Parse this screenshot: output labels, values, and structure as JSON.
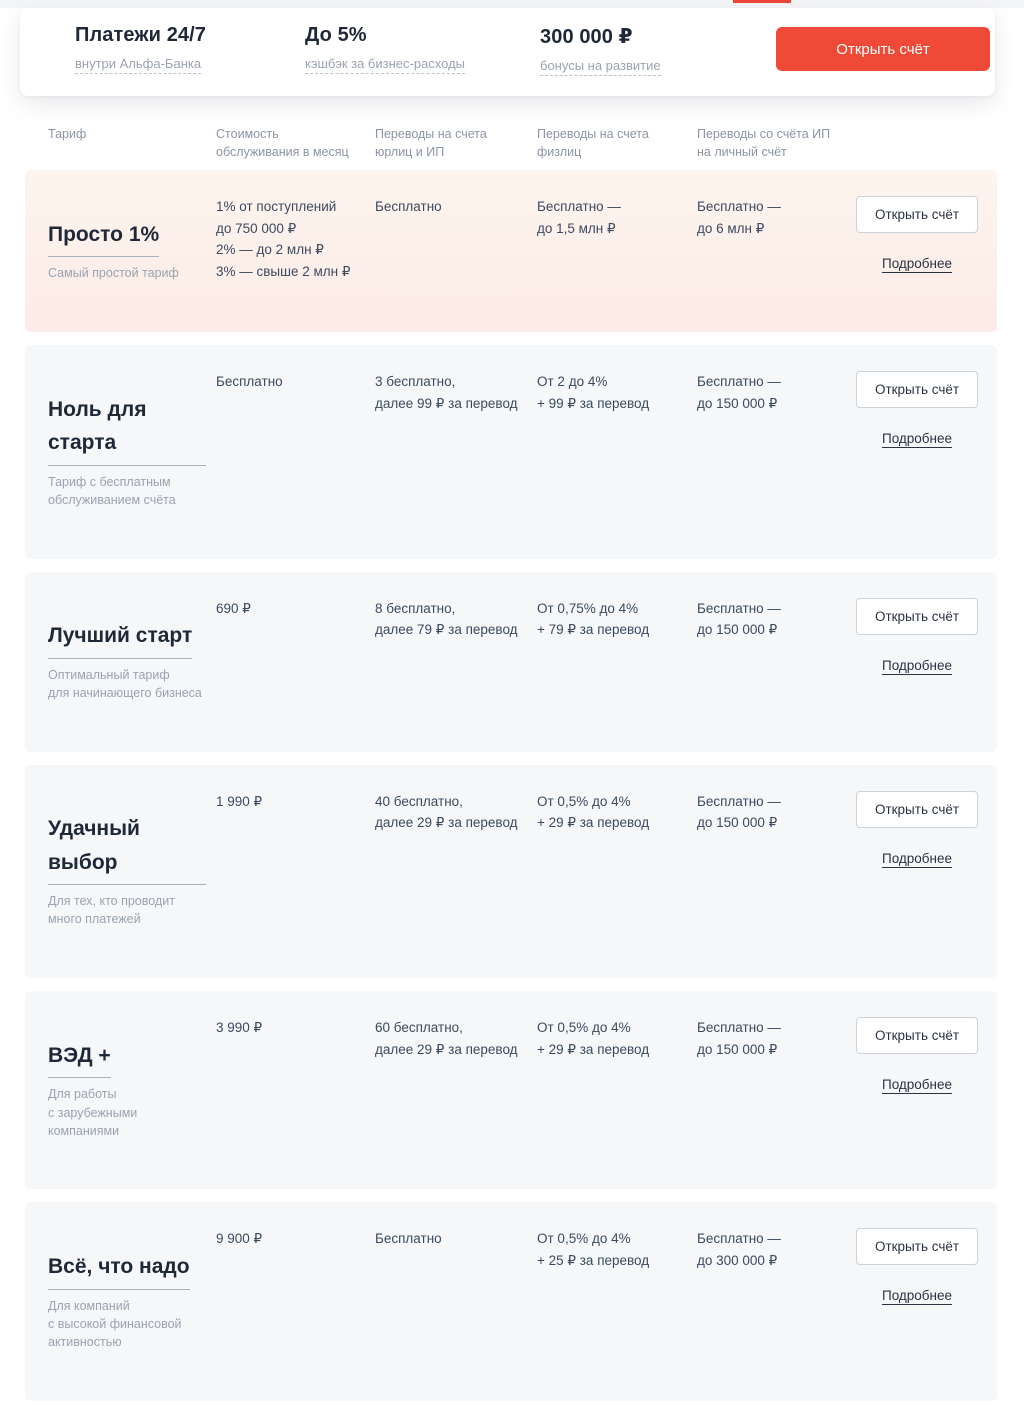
{
  "hero": {
    "stats": [
      {
        "title": "Платежи 24/7",
        "subtitle": "внутри Альфа-Банка"
      },
      {
        "title": "До 5%",
        "subtitle": "кэшбэк за бизнес-расходы"
      },
      {
        "title": "300 000 ₽",
        "subtitle": "бонусы на развитие"
      }
    ],
    "cta_label": "Открыть счёт"
  },
  "table": {
    "headers": [
      "Тариф",
      "Стоимость\nобслуживания в месяц",
      "Переводы на счета\nюрлиц и ИП",
      "Переводы на счета\nфизлиц",
      "Переводы со счёта ИП\nна личный счёт"
    ],
    "open_account_label": "Открыть счёт",
    "details_label": "Подробнее",
    "rows": [
      {
        "name": "Просто 1%",
        "description": "Самый простой тариф",
        "monthly_cost": "1% от поступлений\nдо 750 000 ₽\n2% — до 2 млн ₽\n3% — свыше 2 млн ₽",
        "transfers_business": "Бесплатно",
        "transfers_individuals": "Бесплатно —\nдо 1,5 млн ₽",
        "transfers_personal": "Бесплатно —\nдо 6 млн ₽",
        "highlighted": true
      },
      {
        "name": "Ноль для старта",
        "description": "Тариф с бесплатным\nобслуживанием счёта",
        "monthly_cost": "Бесплатно",
        "transfers_business": "3 бесплатно,\nдалее 99 ₽ за перевод",
        "transfers_individuals": "От 2 до 4%\n+ 99 ₽ за перевод",
        "transfers_personal": "Бесплатно —\nдо 150 000 ₽",
        "highlighted": false
      },
      {
        "name": "Лучший старт",
        "description": "Оптимальный тариф\nдля начинающего бизнеса",
        "monthly_cost": "690 ₽",
        "transfers_business": "8 бесплатно,\nдалее 79 ₽ за перевод",
        "transfers_individuals": "От 0,75% до 4%\n+ 79 ₽ за перевод",
        "transfers_personal": "Бесплатно —\nдо 150 000 ₽",
        "highlighted": false
      },
      {
        "name": "Удачный выбор",
        "description": "Для тех, кто проводит\nмного платежей",
        "monthly_cost": "1 990 ₽",
        "transfers_business": "40 бесплатно,\nдалее 29 ₽ за перевод",
        "transfers_individuals": "От 0,5% до 4%\n+ 29 ₽ за перевод",
        "transfers_personal": "Бесплатно —\nдо 150 000 ₽",
        "highlighted": false
      },
      {
        "name": "ВЭД +",
        "description": "Для работы\nс зарубежными\nкомпаниями",
        "monthly_cost": "3 990 ₽",
        "transfers_business": "60 бесплатно,\nдалее 29 ₽ за перевод",
        "transfers_individuals": "От 0,5% до 4%\n+ 29 ₽ за перевод",
        "transfers_personal": "Бесплатно —\nдо 150 000 ₽",
        "highlighted": false
      },
      {
        "name": "Всё, что надо",
        "description": "Для компаний\nс высокой финансовой\nактивностью",
        "monthly_cost": "9 900 ₽",
        "transfers_business": "Бесплатно",
        "transfers_individuals": "От 0,5% до 4%\n+ 25 ₽ за перевод",
        "transfers_personal": "Бесплатно —\nдо 300 000 ₽",
        "highlighted": false
      }
    ]
  },
  "colors": {
    "accent_red": "#ef4937",
    "highlight_row_top": "#fdf4ee",
    "highlight_row_bottom": "#fcebe6",
    "row_background": "#f5f7f9",
    "title_text": "#1e2838",
    "muted_text": "#9aa3af"
  }
}
